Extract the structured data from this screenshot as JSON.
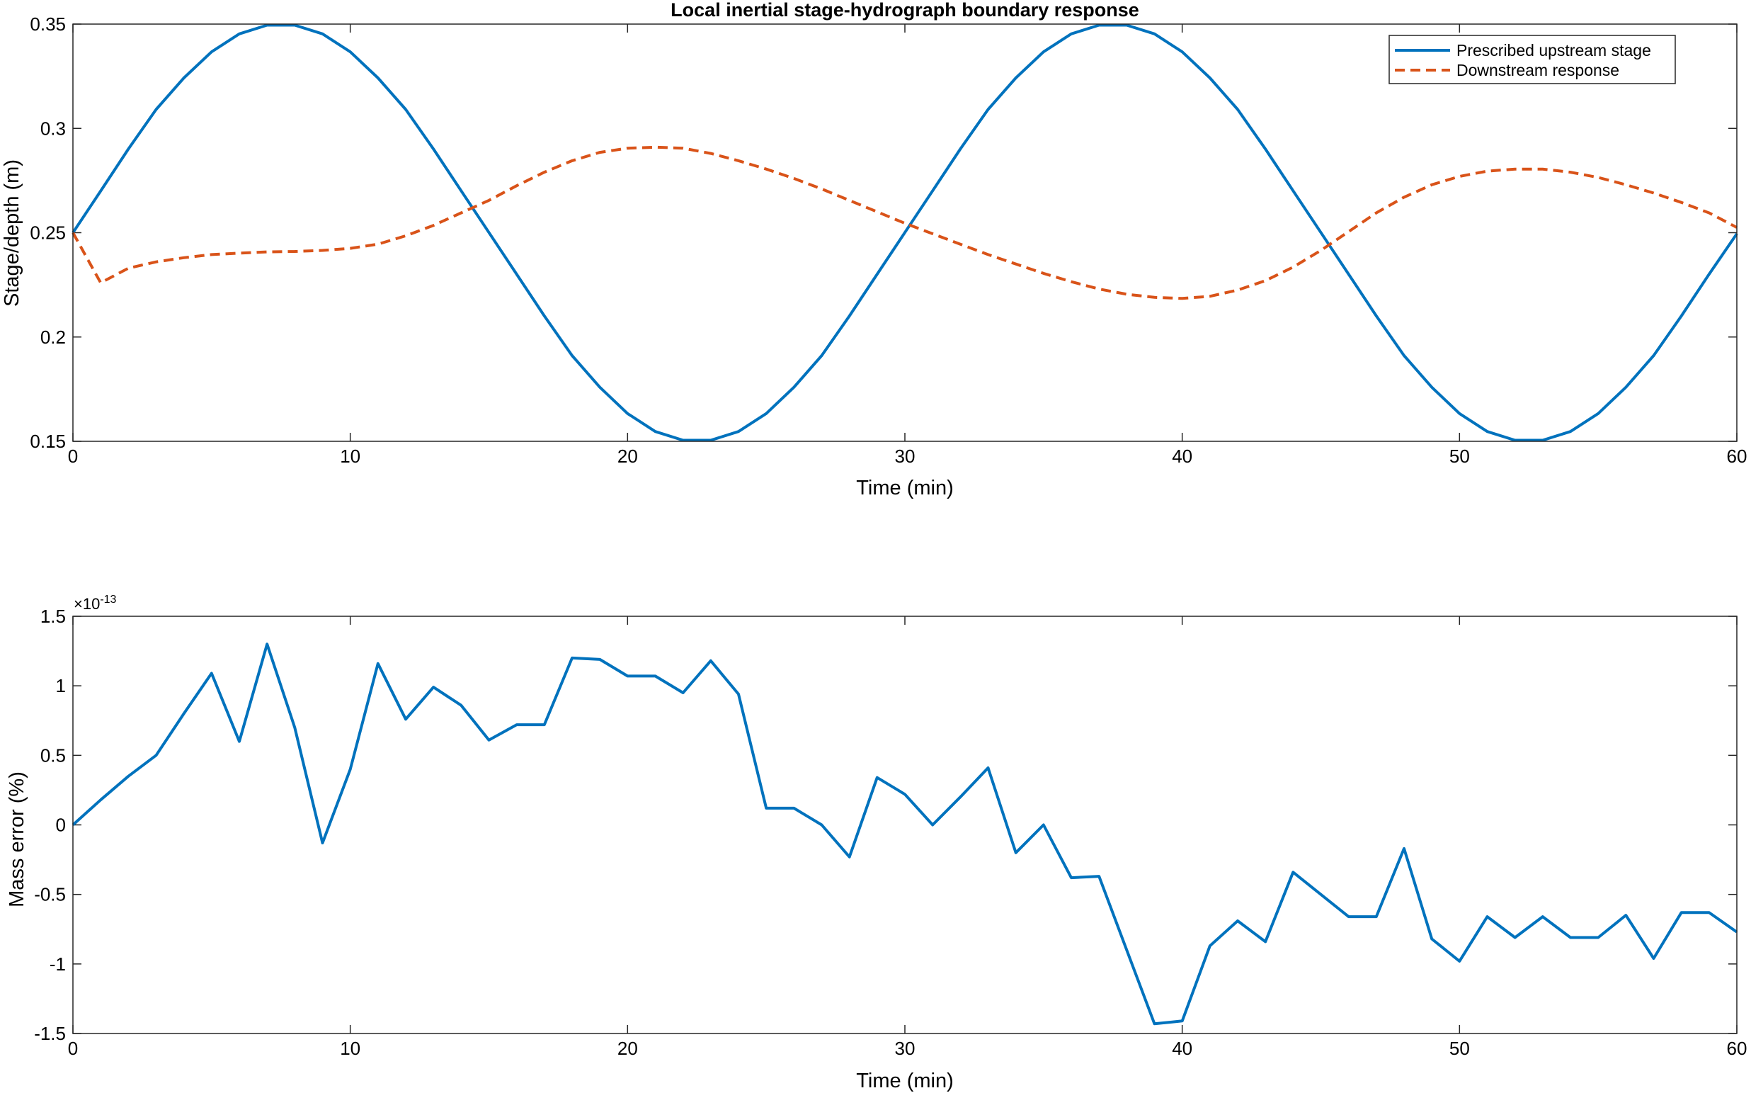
{
  "chart_data": [
    {
      "type": "line",
      "title": "Local inertial stage-hydrograph boundary response",
      "xlabel": "Time (min)",
      "ylabel": "Stage/depth (m)",
      "xlim": [
        0,
        60
      ],
      "ylim": [
        0.15,
        0.35
      ],
      "x_ticks": [
        "0",
        "10",
        "20",
        "30",
        "40",
        "50",
        "60"
      ],
      "y_ticks": [
        "0.15",
        "0.2",
        "0.25",
        "0.3",
        "0.35"
      ],
      "grid": false,
      "legend_position": "top-right",
      "x": [
        0,
        1,
        2,
        3,
        4,
        5,
        6,
        7,
        8,
        9,
        10,
        11,
        12,
        13,
        14,
        15,
        16,
        17,
        18,
        19,
        20,
        21,
        22,
        23,
        24,
        25,
        26,
        27,
        28,
        29,
        30,
        31,
        32,
        33,
        34,
        35,
        36,
        37,
        38,
        39,
        40,
        41,
        42,
        43,
        44,
        45,
        46,
        47,
        48,
        49,
        50,
        51,
        52,
        53,
        54,
        55,
        56,
        57,
        58,
        59,
        60
      ],
      "series": [
        {
          "name": "Prescribed upstream stage",
          "color": "#0072BD",
          "style": "solid",
          "values": [
            0.25,
            0.27,
            0.2901,
            0.3091,
            0.3242,
            0.3367,
            0.3453,
            0.3495,
            0.3495,
            0.3453,
            0.3367,
            0.3242,
            0.3091,
            0.2901,
            0.2701,
            0.2501,
            0.2301,
            0.2101,
            0.1911,
            0.1759,
            0.1633,
            0.1547,
            0.1505,
            0.1505,
            0.1547,
            0.1633,
            0.1759,
            0.1911,
            0.2101,
            0.2301,
            0.2501,
            0.2701,
            0.2901,
            0.3091,
            0.3242,
            0.3367,
            0.3453,
            0.3495,
            0.3495,
            0.3453,
            0.3367,
            0.3242,
            0.3091,
            0.2901,
            0.2701,
            0.2501,
            0.2301,
            0.2101,
            0.1911,
            0.1759,
            0.1633,
            0.1547,
            0.1505,
            0.1505,
            0.1547,
            0.1633,
            0.1759,
            0.1911,
            0.2101,
            0.2301,
            0.2495
          ]
        },
        {
          "name": "Downstream response",
          "color": "#D95319",
          "style": "dashed",
          "values": [
            0.25,
            0.226,
            0.233,
            0.236,
            0.238,
            0.2395,
            0.2402,
            0.2408,
            0.241,
            0.2415,
            0.2425,
            0.2445,
            0.2485,
            0.2535,
            0.2595,
            0.2655,
            0.2725,
            0.279,
            0.2845,
            0.2885,
            0.2905,
            0.291,
            0.2905,
            0.288,
            0.2845,
            0.2805,
            0.276,
            0.271,
            0.2655,
            0.26,
            0.2545,
            0.2495,
            0.2445,
            0.2395,
            0.235,
            0.2305,
            0.2265,
            0.223,
            0.2205,
            0.219,
            0.2185,
            0.2195,
            0.2225,
            0.227,
            0.2335,
            0.2415,
            0.2505,
            0.2595,
            0.267,
            0.273,
            0.277,
            0.2795,
            0.2805,
            0.2805,
            0.279,
            0.2765,
            0.273,
            0.269,
            0.2645,
            0.2595,
            0.2525
          ]
        }
      ]
    },
    {
      "type": "line",
      "title": "",
      "xlabel": "Time (min)",
      "ylabel": "Mass error (%)",
      "exponent_label": "×10",
      "exponent_power": "-13",
      "xlim": [
        0,
        60
      ],
      "ylim": [
        -1.5,
        1.5
      ],
      "x_ticks": [
        "0",
        "10",
        "20",
        "30",
        "40",
        "50",
        "60"
      ],
      "y_ticks": [
        "-1.5",
        "-1",
        "-0.5",
        "0",
        "0.5",
        "1",
        "1.5"
      ],
      "grid": false,
      "x": [
        0,
        1,
        2,
        3,
        4,
        5,
        6,
        7,
        8,
        9,
        10,
        11,
        12,
        13,
        14,
        15,
        16,
        17,
        18,
        19,
        20,
        21,
        22,
        23,
        24,
        25,
        26,
        27,
        28,
        29,
        30,
        31,
        32,
        33,
        34,
        35,
        36,
        37,
        38,
        39,
        40,
        41,
        42,
        43,
        44,
        45,
        46,
        47,
        48,
        49,
        50,
        51,
        52,
        53,
        54,
        55,
        56,
        57,
        58,
        59,
        60
      ],
      "series": [
        {
          "color": "#0072BD",
          "style": "solid",
          "values": [
            0,
            0.18,
            0.35,
            0.5,
            0.8,
            1.09,
            0.6,
            1.3,
            0.7,
            -0.13,
            0.4,
            1.16,
            0.76,
            0.99,
            0.86,
            0.61,
            0.72,
            0.72,
            1.2,
            1.19,
            1.07,
            1.07,
            0.95,
            1.18,
            0.94,
            0.12,
            0.12,
            0,
            -0.23,
            0.34,
            0.22,
            0,
            0.2,
            0.41,
            -0.2,
            0,
            -0.38,
            -0.37,
            -0.9,
            -1.43,
            -1.41,
            -0.87,
            -0.69,
            -0.84,
            -0.34,
            -0.5,
            -0.66,
            -0.66,
            -0.17,
            -0.82,
            -0.98,
            -0.66,
            -0.81,
            -0.66,
            -0.81,
            -0.81,
            -0.65,
            -0.96,
            -0.63,
            -0.63,
            -0.77
          ]
        }
      ]
    }
  ]
}
